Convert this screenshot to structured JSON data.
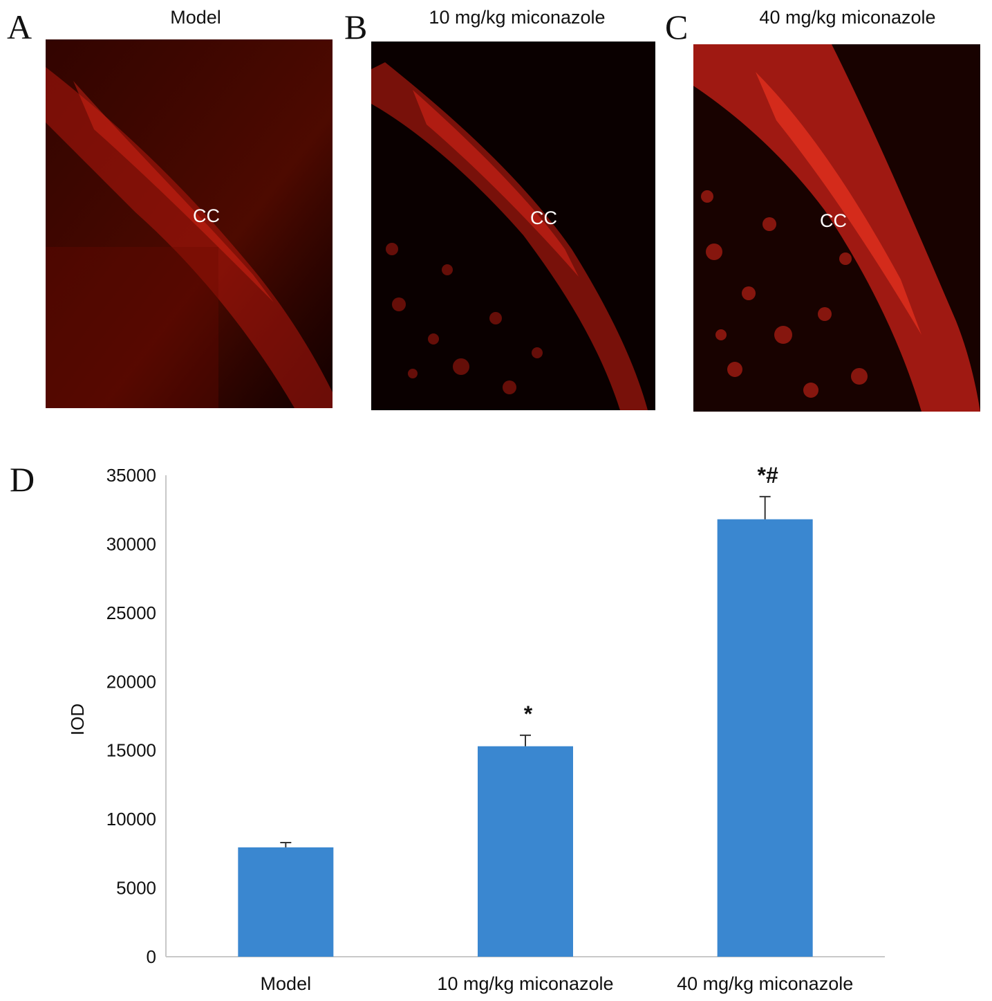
{
  "panels": [
    {
      "letter": "A",
      "title": "Model",
      "label": "CC"
    },
    {
      "letter": "B",
      "title": "10 mg/kg miconazole",
      "label": "CC"
    },
    {
      "letter": "C",
      "title": "40 mg/kg miconazole",
      "label": "CC"
    }
  ],
  "chart_panel": {
    "letter": "D"
  },
  "colors": {
    "bar": "#3a87d0",
    "stain": "#e8281a",
    "tissue_bg": "#0a0000",
    "axis": "#c8c8c8"
  },
  "chart_data": {
    "type": "bar",
    "categories": [
      "Model",
      "10 mg/kg miconazole",
      "40 mg/kg miconazole"
    ],
    "values": [
      7950,
      15300,
      31800
    ],
    "error": [
      350,
      800,
      1650
    ],
    "annotations": [
      "",
      "*",
      "*#"
    ],
    "ylabel": "IOD",
    "xlabel": "",
    "ylim": [
      0,
      35000
    ],
    "yticks": [
      "0",
      "5000",
      "10000",
      "15000",
      "20000",
      "25000",
      "30000",
      "35000"
    ],
    "grid": false,
    "legend": "none"
  }
}
